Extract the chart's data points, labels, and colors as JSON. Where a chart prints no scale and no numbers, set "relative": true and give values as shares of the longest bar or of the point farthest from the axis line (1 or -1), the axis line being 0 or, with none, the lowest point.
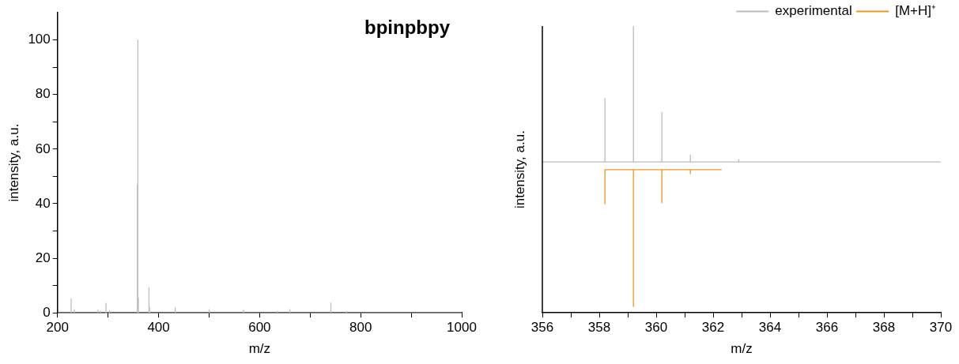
{
  "chart_data": [
    {
      "type": "line",
      "title": "bpinpbpy",
      "xlabel": "m/z",
      "ylabel": "intensity, a.u.",
      "xlim": [
        200,
        1000
      ],
      "xticks": [
        200,
        {
          "value": 300,
          "label": null
        },
        400,
        {
          "value": 500,
          "label": null
        },
        600,
        {
          "value": 700,
          "label": null
        },
        800,
        {
          "value": 900,
          "label": null
        },
        1000
      ],
      "ylim": [
        0,
        110
      ],
      "yticks": [
        0,
        {
          "value": 10,
          "label": null
        },
        20,
        {
          "value": 30,
          "label": null
        },
        40,
        {
          "value": 50,
          "label": null
        },
        60,
        {
          "value": 70,
          "label": null
        },
        80,
        {
          "value": 90,
          "label": null
        },
        100
      ],
      "grid": false,
      "legend": false,
      "series": [
        {
          "color": "#bdbdbd",
          "x": [
            200,
            227,
            227,
            227,
            233,
            233,
            233,
            280,
            280,
            280,
            285,
            285,
            285,
            296,
            296,
            296,
            303,
            303,
            303,
            358,
            358,
            358,
            359,
            359,
            359,
            360,
            360,
            360,
            381,
            381,
            381,
            382,
            382,
            382,
            433,
            433,
            433,
            500,
            500,
            500,
            568,
            568,
            568,
            635,
            635,
            635,
            660,
            660,
            660,
            741,
            741,
            741,
            772,
            772,
            772,
            1000
          ],
          "values": [
            0,
            0,
            5.2,
            0,
            0,
            1.2,
            0,
            0,
            1,
            0,
            0,
            0.6,
            0,
            0,
            3.5,
            0,
            0,
            0.8,
            0,
            0,
            47,
            0,
            0,
            100,
            0,
            0,
            5.5,
            0,
            0,
            9.2,
            0,
            0,
            2,
            0,
            0,
            1.8,
            0,
            0,
            1.2,
            0,
            0,
            1,
            0,
            0,
            0.6,
            0,
            0,
            1.2,
            0,
            0,
            3.6,
            0,
            0,
            0.5,
            0,
            0
          ]
        }
      ]
    },
    {
      "type": "line",
      "xlabel": "m/z",
      "ylabel": "intensity, a.u.",
      "relative": true,
      "xlim": [
        356,
        370
      ],
      "xticks": [
        356,
        {
          "value": 357,
          "label": null
        },
        358,
        {
          "value": 359,
          "label": null
        },
        360,
        {
          "value": 361,
          "label": null
        },
        362,
        {
          "value": 363,
          "label": null
        },
        364,
        {
          "value": 365,
          "label": null
        },
        366,
        {
          "value": 367,
          "label": null
        },
        368,
        {
          "value": 369,
          "label": null
        },
        370
      ],
      "tick_labels": "x",
      "grid": false,
      "legend": "top right",
      "series": [
        {
          "name": "experimental",
          "color": "#bdbdbd",
          "x": [
            356,
            358.2,
            358.2,
            358.2,
            359.2,
            359.2,
            359.2,
            360.2,
            360.2,
            360.2,
            361.2,
            361.2,
            361.2,
            362.9,
            362.9,
            362.9,
            370
          ],
          "values": [
            0.526,
            0.526,
            0.748,
            0.526,
            0.526,
            1,
            0.526,
            0.526,
            0.699,
            0.526,
            0.526,
            0.551,
            0.526,
            0.526,
            0.534,
            0.526,
            0.526
          ]
        },
        {
          "name": "[M+H]⁺",
          "color": "#f0961e",
          "x": [
            358.2,
            358.2,
            359.2,
            359.2,
            359.2,
            360.2,
            360.2,
            360.2,
            361.2,
            361.2,
            361.2,
            362.3
          ],
          "values": [
            0.379,
            0.499,
            0.499,
            0.022,
            0.499,
            0.499,
            0.384,
            0.499,
            0.499,
            0.485,
            0.499,
            0.499
          ]
        }
      ]
    }
  ]
}
